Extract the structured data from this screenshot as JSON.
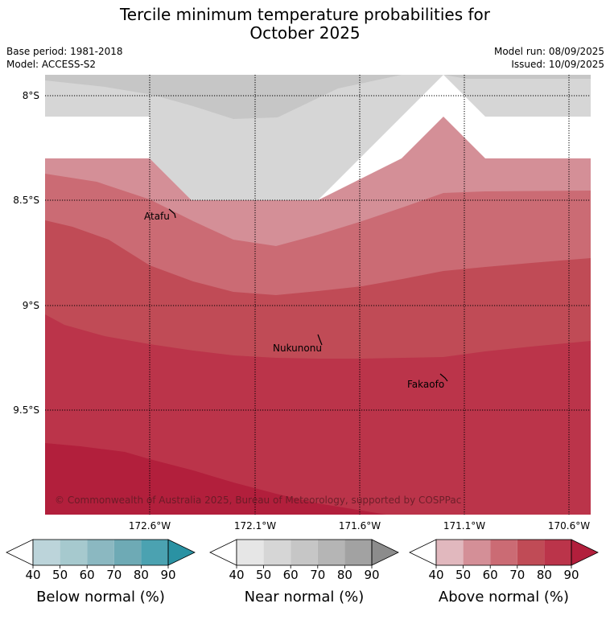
{
  "title_line1": "Tercile minimum temperature probabilities for",
  "title_line2": "October 2025",
  "base_period": "Base period: 1981-2018",
  "model": "Model: ACCESS-S2",
  "model_run": "Model run: 08/09/2025",
  "issued": "Issued: 10/09/2025",
  "lat_labels": [
    "8°S",
    "8.5°S",
    "9°S",
    "9.5°S"
  ],
  "lon_labels": [
    "172.6°W",
    "172.1°W",
    "171.6°W",
    "171.1°W",
    "170.6°W"
  ],
  "places": [
    "Atafu",
    "Nukunonu",
    "Fakaofo"
  ],
  "copyright": "© Commonwealth of Australia 2025, Bureau of Meteorology, supported by COSPPac",
  "colorbars": [
    {
      "label": "Below normal (%)",
      "ticks": [
        "40",
        "50",
        "60",
        "70",
        "80",
        "90"
      ],
      "colors": [
        "#ffffff",
        "#bcd4da",
        "#a6c9ce",
        "#8bb8c1",
        "#6eaab5",
        "#4ba2b1",
        "#2a92a3"
      ]
    },
    {
      "label": "Near normal (%)",
      "ticks": [
        "40",
        "50",
        "60",
        "70",
        "80",
        "90"
      ],
      "colors": [
        "#ffffff",
        "#e6e6e6",
        "#d6d6d6",
        "#c6c6c6",
        "#b5b5b5",
        "#a2a2a2",
        "#8c8c8c"
      ]
    },
    {
      "label": "Above normal (%)",
      "ticks": [
        "40",
        "50",
        "60",
        "70",
        "80",
        "90"
      ],
      "colors": [
        "#ffffff",
        "#e1b8be",
        "#d48f97",
        "#cb6b74",
        "#c04b56",
        "#bb344a",
        "#b21f3c"
      ]
    }
  ]
}
